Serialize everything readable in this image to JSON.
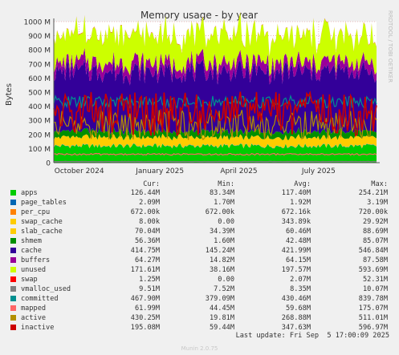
{
  "chart_data": {
    "type": "area",
    "title": "Memory usage - by year",
    "ylabel": "Bytes",
    "side_label": "RRDTOOL / TOBI OETIKER",
    "ylim": [
      0,
      1000000000
    ],
    "yticks": [
      {
        "value": 0,
        "label": "0"
      },
      {
        "value": 100000000,
        "label": "100 M"
      },
      {
        "value": 200000000,
        "label": "200 M"
      },
      {
        "value": 300000000,
        "label": "300 M"
      },
      {
        "value": 400000000,
        "label": "400 M"
      },
      {
        "value": 500000000,
        "label": "500 M"
      },
      {
        "value": 600000000,
        "label": "600 M"
      },
      {
        "value": 700000000,
        "label": "700 M"
      },
      {
        "value": 800000000,
        "label": "800 M"
      },
      {
        "value": 900000000,
        "label": "900 M"
      },
      {
        "value": 1000000000,
        "label": "1000 M"
      }
    ],
    "xlim": [
      "2024-09-02",
      "2025-09-05"
    ],
    "xticks": [
      {
        "date": "2024-10-01",
        "label": "October 2024"
      },
      {
        "date": "2025-01-01",
        "label": "January 2025"
      },
      {
        "date": "2025-04-01",
        "label": "April 2025"
      },
      {
        "date": "2025-07-01",
        "label": "July 2025"
      }
    ],
    "grid": true,
    "legend_columns": [
      "Cur:",
      "Min:",
      "Avg:",
      "Max:"
    ],
    "stacked_areas": [
      "apps",
      "page_tables",
      "per_cpu",
      "swap_cache",
      "slab_cache",
      "shmem",
      "cache",
      "buffers",
      "unused",
      "swap"
    ],
    "line_series": [
      "vmalloc_used",
      "committed",
      "mapped",
      "active",
      "inactive"
    ],
    "series": [
      {
        "name": "apps",
        "color": "#00cc00",
        "cur": "126.44M",
        "min": "83.34M",
        "avg": "117.40M",
        "max": "254.21M",
        "avg_value": 117400000
      },
      {
        "name": "page_tables",
        "color": "#0066b3",
        "cur": "2.09M",
        "min": "1.70M",
        "avg": "1.92M",
        "max": "3.19M",
        "avg_value": 1920000
      },
      {
        "name": "per_cpu",
        "color": "#ff8000",
        "cur": "672.00k",
        "min": "672.00k",
        "avg": "672.16k",
        "max": "720.00k",
        "avg_value": 672160
      },
      {
        "name": "swap_cache",
        "color": "#ffcc00",
        "cur": "8.00k",
        "min": "0.00",
        "avg": "343.89k",
        "max": "29.92M",
        "avg_value": 343890
      },
      {
        "name": "slab_cache",
        "color": "#ffcc00",
        "cur": "70.04M",
        "min": "34.39M",
        "avg": "60.46M",
        "max": "88.69M",
        "avg_value": 60460000
      },
      {
        "name": "shmem",
        "color": "#008f00",
        "cur": "56.36M",
        "min": "1.60M",
        "avg": "42.48M",
        "max": "85.07M",
        "avg_value": 42480000
      },
      {
        "name": "cache",
        "color": "#330099",
        "cur": "414.75M",
        "min": "145.24M",
        "avg": "421.99M",
        "max": "546.84M",
        "avg_value": 421990000
      },
      {
        "name": "buffers",
        "color": "#990099",
        "cur": "64.27M",
        "min": "14.82M",
        "avg": "64.15M",
        "max": "87.58M",
        "avg_value": 64150000
      },
      {
        "name": "unused",
        "color": "#ccff00",
        "cur": "171.61M",
        "min": "38.16M",
        "avg": "197.57M",
        "max": "593.69M",
        "avg_value": 197570000
      },
      {
        "name": "swap",
        "color": "#ff0000",
        "cur": "1.25M",
        "min": "0.00",
        "avg": "2.07M",
        "max": "52.31M",
        "avg_value": 2070000
      },
      {
        "name": "vmalloc_used",
        "color": "#808080",
        "cur": "9.51M",
        "min": "7.52M",
        "avg": "8.35M",
        "max": "10.07M",
        "avg_value": 8350000
      },
      {
        "name": "committed",
        "color": "#008f8f",
        "cur": "467.90M",
        "min": "379.09M",
        "avg": "430.46M",
        "max": "839.78M",
        "avg_value": 430460000
      },
      {
        "name": "mapped",
        "color": "#ff6666",
        "cur": "61.99M",
        "min": "44.45M",
        "avg": "59.68M",
        "max": "175.07M",
        "avg_value": 59680000
      },
      {
        "name": "active",
        "color": "#b38f00",
        "cur": "430.25M",
        "min": "19.81M",
        "avg": "268.88M",
        "max": "511.01M",
        "avg_value": 268880000
      },
      {
        "name": "inactive",
        "color": "#cc0000",
        "cur": "195.08M",
        "min": "59.44M",
        "avg": "347.63M",
        "max": "596.97M",
        "avg_value": 347630000
      }
    ],
    "last_update": "Last update: Fri Sep  5 17:00:09 2025",
    "footer": "Munin 2.0.75"
  }
}
